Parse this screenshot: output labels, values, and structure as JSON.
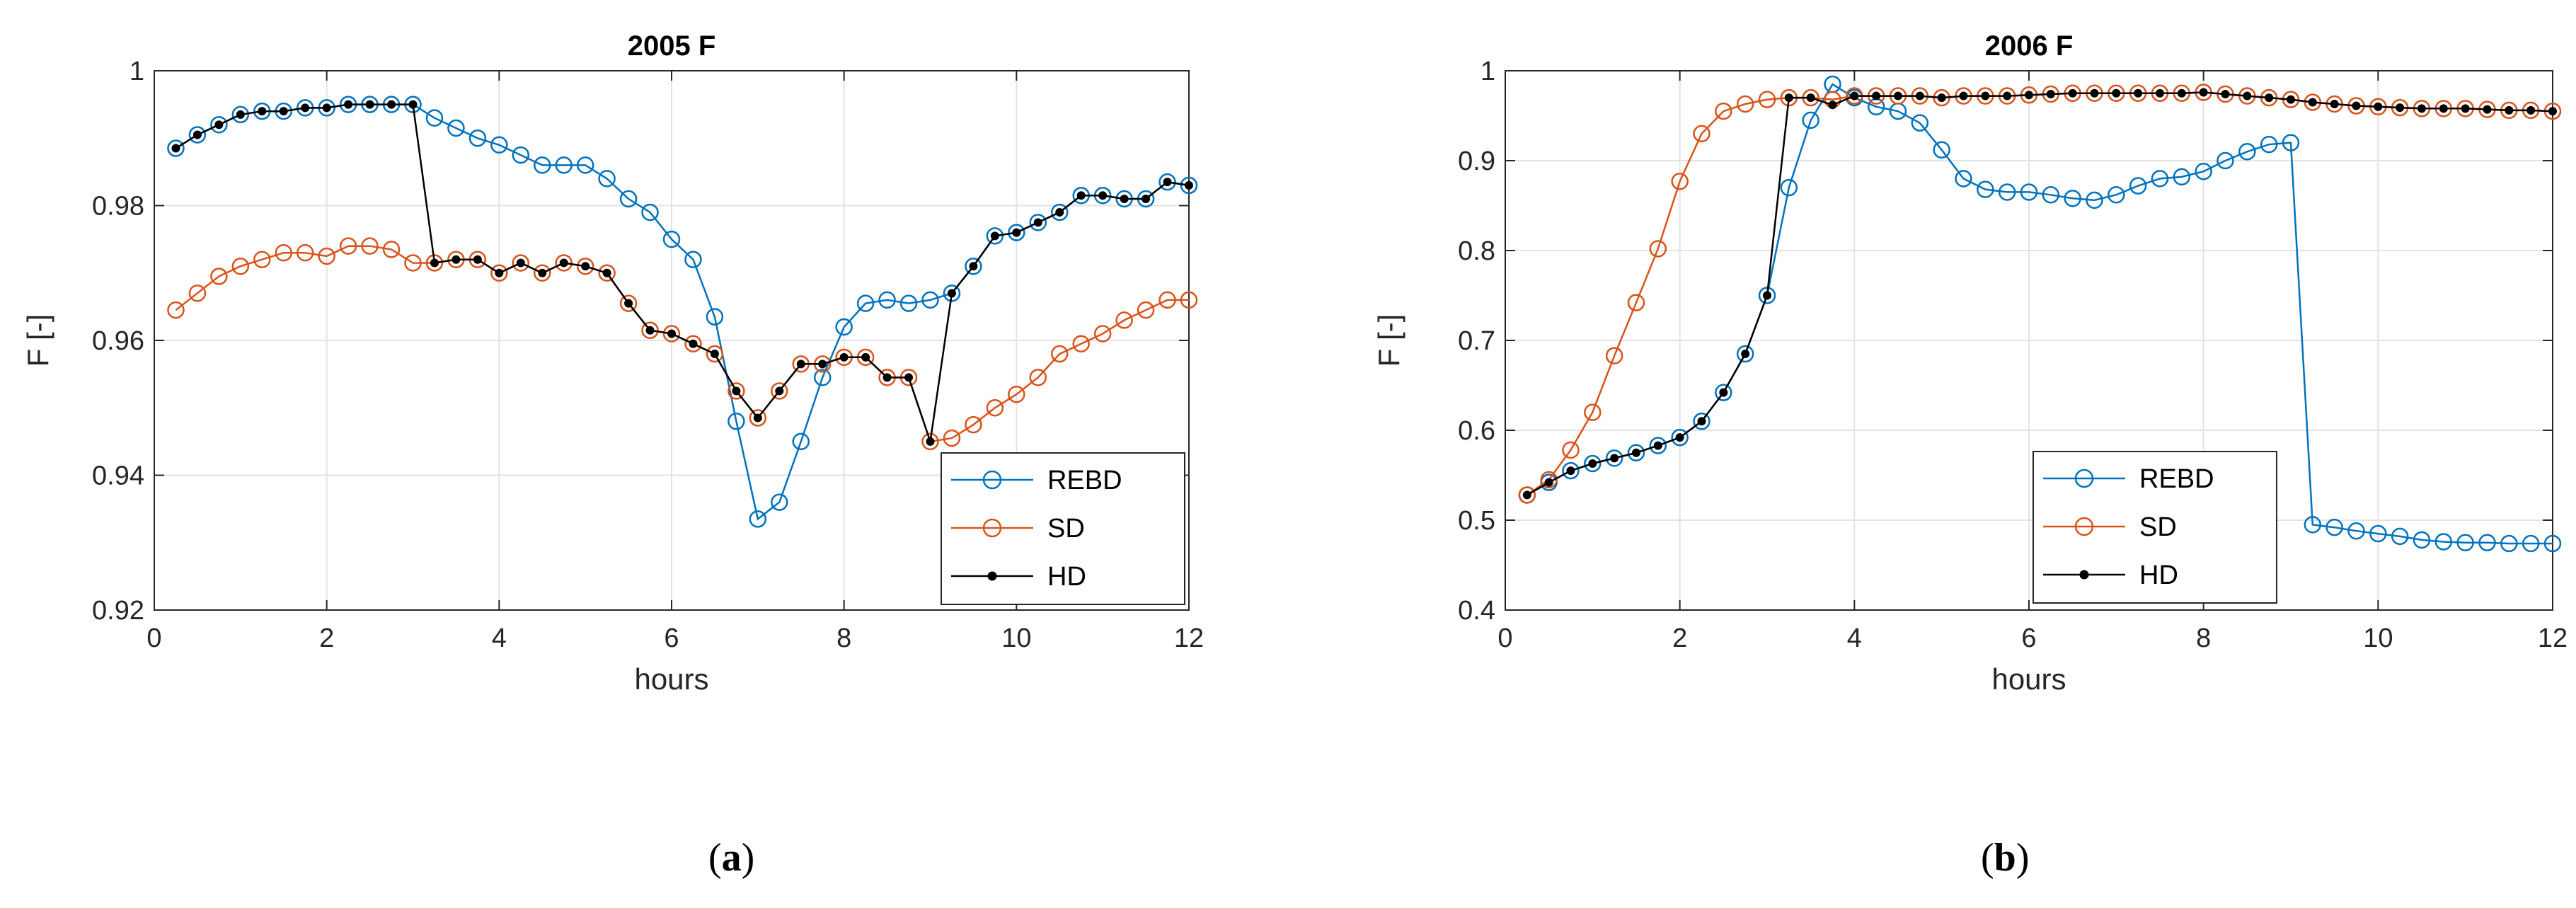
{
  "panels": [
    {
      "label_open": "(",
      "label_letter": "a",
      "label_close": ")"
    },
    {
      "label_open": "(",
      "label_letter": "b",
      "label_close": ")"
    }
  ],
  "chart_data": [
    {
      "type": "line",
      "title": "2005 F",
      "xlabel": "hours",
      "ylabel": "F [-]",
      "xlim": [
        0,
        12
      ],
      "ylim": [
        0.92,
        1.0
      ],
      "xticks": [
        0,
        2,
        4,
        6,
        8,
        10,
        12
      ],
      "yticks": [
        0.92,
        0.94,
        0.96,
        0.98,
        1.0
      ],
      "ytick_labels": [
        "0.92",
        "0.94",
        "0.96",
        "0.98",
        "1"
      ],
      "grid": true,
      "legend": "bottom-right",
      "x": [
        0.25,
        0.5,
        0.75,
        1.0,
        1.25,
        1.5,
        1.75,
        2.0,
        2.25,
        2.5,
        2.75,
        3.0,
        3.25,
        3.5,
        3.75,
        4.0,
        4.25,
        4.5,
        4.75,
        5.0,
        5.25,
        5.5,
        5.75,
        6.0,
        6.25,
        6.5,
        6.75,
        7.0,
        7.25,
        7.5,
        7.75,
        8.0,
        8.25,
        8.5,
        8.75,
        9.0,
        9.25,
        9.5,
        9.75,
        10.0,
        10.25,
        10.5,
        10.75,
        11.0,
        11.25,
        11.5,
        11.75,
        12.0
      ],
      "series": [
        {
          "name": "REBD",
          "color": "#0072BD",
          "marker": "open-circle",
          "values": [
            0.9885,
            0.9905,
            0.992,
            0.9935,
            0.994,
            0.994,
            0.9945,
            0.9945,
            0.995,
            0.995,
            0.995,
            0.995,
            0.993,
            0.9915,
            0.99,
            0.989,
            0.9875,
            0.986,
            0.986,
            0.986,
            0.984,
            0.981,
            0.979,
            0.975,
            0.972,
            0.9635,
            0.948,
            0.9335,
            0.936,
            0.945,
            0.9545,
            0.962,
            0.9655,
            0.966,
            0.9655,
            0.966,
            0.967,
            0.971,
            0.9755,
            0.976,
            0.9775,
            0.979,
            0.9815,
            0.9815,
            0.981,
            0.981,
            0.9835,
            0.983
          ]
        },
        {
          "name": "SD",
          "color": "#D95319",
          "marker": "open-circle",
          "values": [
            0.9645,
            0.967,
            0.9695,
            0.971,
            0.972,
            0.973,
            0.973,
            0.9725,
            0.974,
            0.974,
            0.9735,
            0.9715,
            0.9715,
            0.972,
            0.972,
            0.97,
            0.9715,
            0.97,
            0.9715,
            0.971,
            0.97,
            0.9655,
            0.9615,
            0.961,
            0.9595,
            0.958,
            0.9525,
            0.9485,
            0.9525,
            0.9565,
            0.9565,
            0.9575,
            0.9575,
            0.9545,
            0.9545,
            0.945,
            0.9455,
            0.9475,
            0.95,
            0.952,
            0.9545,
            0.958,
            0.9595,
            0.961,
            0.963,
            0.9645,
            0.966,
            0.966
          ]
        },
        {
          "name": "HD",
          "color": "#000000",
          "marker": "filled-dot",
          "values": [
            0.9885,
            0.9905,
            0.992,
            0.9935,
            0.994,
            0.994,
            0.9945,
            0.9945,
            0.995,
            0.995,
            0.995,
            0.995,
            0.9715,
            0.972,
            0.972,
            0.97,
            0.9715,
            0.97,
            0.9715,
            0.971,
            0.97,
            0.9655,
            0.9615,
            0.961,
            0.9595,
            0.958,
            0.9525,
            0.9485,
            0.9525,
            0.9565,
            0.9565,
            0.9575,
            0.9575,
            0.9545,
            0.9545,
            0.945,
            0.967,
            0.971,
            0.9755,
            0.976,
            0.9775,
            0.979,
            0.9815,
            0.9815,
            0.981,
            0.981,
            0.9835,
            0.983
          ]
        }
      ]
    },
    {
      "type": "line",
      "title": "2006 F",
      "xlabel": "hours",
      "ylabel": "F [-]",
      "xlim": [
        0,
        12
      ],
      "ylim": [
        0.4,
        1.0
      ],
      "xticks": [
        0,
        2,
        4,
        6,
        8,
        10,
        12
      ],
      "yticks": [
        0.4,
        0.5,
        0.6,
        0.7,
        0.8,
        0.9,
        1.0
      ],
      "ytick_labels": [
        "0.4",
        "0.5",
        "0.6",
        "0.7",
        "0.8",
        "0.9",
        "1"
      ],
      "grid": true,
      "legend": "bottom-left",
      "x": [
        0.25,
        0.5,
        0.75,
        1.0,
        1.25,
        1.5,
        1.75,
        2.0,
        2.25,
        2.5,
        2.75,
        3.0,
        3.25,
        3.5,
        3.75,
        4.0,
        4.25,
        4.5,
        4.75,
        5.0,
        5.25,
        5.5,
        5.75,
        6.0,
        6.25,
        6.5,
        6.75,
        7.0,
        7.25,
        7.5,
        7.75,
        8.0,
        8.25,
        8.5,
        8.75,
        9.0,
        9.25,
        9.5,
        9.75,
        10.0,
        10.25,
        10.5,
        10.75,
        11.0,
        11.25,
        11.5,
        11.75,
        12.0
      ],
      "series": [
        {
          "name": "REBD",
          "color": "#0072BD",
          "marker": "open-circle",
          "values": [
            0.528,
            0.542,
            0.555,
            0.563,
            0.569,
            0.575,
            0.583,
            0.592,
            0.61,
            0.642,
            0.685,
            0.75,
            0.87,
            0.945,
            0.985,
            0.97,
            0.96,
            0.955,
            0.942,
            0.912,
            0.88,
            0.868,
            0.865,
            0.865,
            0.862,
            0.858,
            0.856,
            0.862,
            0.872,
            0.88,
            0.882,
            0.888,
            0.9,
            0.91,
            0.918,
            0.92,
            0.495,
            0.492,
            0.488,
            0.485,
            0.482,
            0.478,
            0.476,
            0.475,
            0.475,
            0.474,
            0.474,
            0.474
          ]
        },
        {
          "name": "SD",
          "color": "#D95319",
          "marker": "open-circle",
          "values": [
            0.528,
            0.545,
            0.578,
            0.62,
            0.683,
            0.742,
            0.802,
            0.877,
            0.93,
            0.955,
            0.963,
            0.968,
            0.97,
            0.97,
            0.968,
            0.972,
            0.972,
            0.972,
            0.972,
            0.97,
            0.972,
            0.972,
            0.972,
            0.973,
            0.974,
            0.975,
            0.975,
            0.975,
            0.975,
            0.975,
            0.975,
            0.976,
            0.974,
            0.972,
            0.97,
            0.968,
            0.965,
            0.963,
            0.961,
            0.96,
            0.959,
            0.958,
            0.958,
            0.958,
            0.957,
            0.956,
            0.956,
            0.955
          ]
        },
        {
          "name": "HD",
          "color": "#000000",
          "marker": "filled-dot",
          "values": [
            0.528,
            0.542,
            0.555,
            0.563,
            0.569,
            0.575,
            0.583,
            0.592,
            0.61,
            0.642,
            0.685,
            0.75,
            0.97,
            0.97,
            0.962,
            0.972,
            0.972,
            0.972,
            0.972,
            0.97,
            0.972,
            0.972,
            0.972,
            0.973,
            0.974,
            0.975,
            0.975,
            0.975,
            0.975,
            0.975,
            0.975,
            0.976,
            0.974,
            0.972,
            0.97,
            0.968,
            0.965,
            0.963,
            0.961,
            0.96,
            0.959,
            0.958,
            0.958,
            0.958,
            0.957,
            0.956,
            0.956,
            0.955
          ]
        }
      ]
    }
  ]
}
